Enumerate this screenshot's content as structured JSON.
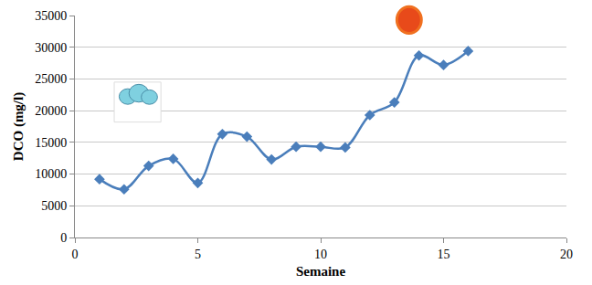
{
  "chart_data": {
    "type": "line",
    "x_label": "Semaine",
    "y_label": "DCO (mg/l)",
    "x": [
      1,
      2,
      3,
      4,
      5,
      6,
      7,
      8,
      9,
      10,
      11,
      12,
      13,
      14,
      15,
      16
    ],
    "values": [
      9200,
      7600,
      11300,
      12400,
      8600,
      16300,
      15900,
      12300,
      14300,
      14300,
      14200,
      19300,
      21300,
      28700,
      27200,
      29400
    ],
    "color": "#4a7ebb",
    "marker": "diamond",
    "line_style": "smooth",
    "xlim": [
      0,
      20
    ],
    "xticks": [
      0,
      5,
      10,
      15,
      20
    ],
    "ylim": [
      0,
      35000
    ],
    "yticks": [
      0,
      5000,
      10000,
      15000,
      20000,
      25000,
      30000,
      35000
    ],
    "grid": true
  }
}
